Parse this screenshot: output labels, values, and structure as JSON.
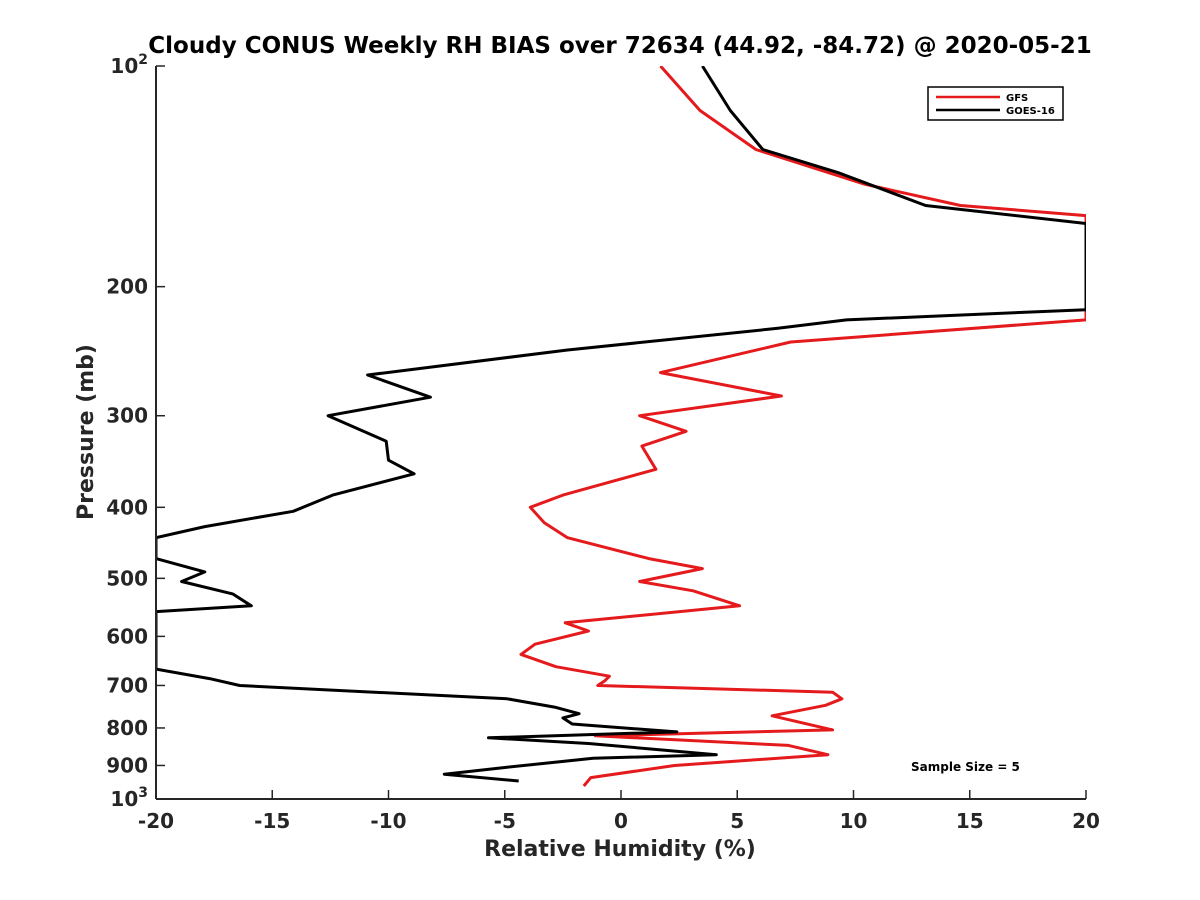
{
  "chart_data": {
    "type": "line",
    "title": "Cloudy CONUS Weekly RH BIAS over 72634 (44.92, -84.72) @ 2020-05-21",
    "xlabel": "Relative Humidity (%)",
    "ylabel": "Pressure (mb)",
    "xlim": [
      -20,
      20
    ],
    "ylim": [
      100,
      1000
    ],
    "yscale": "log",
    "y_reversed": true,
    "x_ticks": [
      "-20",
      "-15",
      "-10",
      "-5",
      "0",
      "5",
      "10",
      "15",
      "20"
    ],
    "y_ticks": [
      {
        "value": 100,
        "base": "10",
        "exp": "2"
      },
      {
        "value": 200,
        "label": "200"
      },
      {
        "value": 300,
        "label": "300"
      },
      {
        "value": 400,
        "label": "400"
      },
      {
        "value": 500,
        "label": "500"
      },
      {
        "value": 600,
        "label": "600"
      },
      {
        "value": 700,
        "label": "700"
      },
      {
        "value": 800,
        "label": "800"
      },
      {
        "value": 900,
        "label": "900"
      },
      {
        "value": 1000,
        "base": "10",
        "exp": "3"
      }
    ],
    "legend_position": "top-right",
    "grid": false,
    "annotation": "Sample Size = 5",
    "series": [
      {
        "name": "GFS",
        "color": "#e41a1c",
        "points": [
          [
            1.7,
            100
          ],
          [
            3.4,
            115
          ],
          [
            5.8,
            130
          ],
          [
            10.5,
            145
          ],
          [
            14.6,
            155
          ],
          [
            20.0,
            160
          ],
          [
            20.0,
            222
          ],
          [
            7.3,
            238
          ],
          [
            1.7,
            262
          ],
          [
            6.9,
            282
          ],
          [
            0.8,
            300
          ],
          [
            2.8,
            315
          ],
          [
            0.9,
            330
          ],
          [
            1.5,
            355
          ],
          [
            -2.5,
            385
          ],
          [
            -3.9,
            400
          ],
          [
            -3.3,
            420
          ],
          [
            -2.3,
            440
          ],
          [
            1.2,
            470
          ],
          [
            3.5,
            485
          ],
          [
            0.8,
            505
          ],
          [
            3.1,
            520
          ],
          [
            5.1,
            545
          ],
          [
            -2.4,
            575
          ],
          [
            -1.4,
            590
          ],
          [
            -3.7,
            615
          ],
          [
            -4.3,
            635
          ],
          [
            -2.8,
            660
          ],
          [
            -0.5,
            680
          ],
          [
            -0.7,
            690
          ],
          [
            -1.0,
            700
          ],
          [
            9.1,
            715
          ],
          [
            9.5,
            730
          ],
          [
            8.8,
            745
          ],
          [
            6.5,
            770
          ],
          [
            9.1,
            805
          ],
          [
            -1.1,
            820
          ],
          [
            7.2,
            845
          ],
          [
            8.9,
            870
          ],
          [
            2.3,
            900
          ],
          [
            -1.3,
            935
          ],
          [
            -1.6,
            960
          ]
        ]
      },
      {
        "name": "GOES-16",
        "color": "#000000",
        "points": [
          [
            3.5,
            100
          ],
          [
            4.7,
            115
          ],
          [
            6.1,
            130
          ],
          [
            9.4,
            140
          ],
          [
            13.1,
            155
          ],
          [
            20.0,
            164
          ],
          [
            20.0,
            215
          ],
          [
            9.7,
            222
          ],
          [
            6.7,
            228
          ],
          [
            -2.3,
            244
          ],
          [
            -10.9,
            264
          ],
          [
            -8.2,
            283
          ],
          [
            -12.6,
            300
          ],
          [
            -10.1,
            325
          ],
          [
            -10.0,
            345
          ],
          [
            -8.9,
            360
          ],
          [
            -12.4,
            385
          ],
          [
            -14.1,
            405
          ],
          [
            -17.9,
            425
          ],
          [
            -20.0,
            440
          ],
          [
            -20.0,
            470
          ],
          [
            -17.9,
            490
          ],
          [
            -18.9,
            505
          ],
          [
            -16.7,
            525
          ],
          [
            -15.9,
            545
          ],
          [
            -20.0,
            555
          ],
          [
            -20.0,
            665
          ],
          [
            -17.7,
            685
          ],
          [
            -16.4,
            700
          ],
          [
            -4.9,
            730
          ],
          [
            -2.8,
            750
          ],
          [
            -1.8,
            765
          ],
          [
            -2.5,
            775
          ],
          [
            -2.1,
            790
          ],
          [
            2.4,
            810
          ],
          [
            -5.7,
            825
          ],
          [
            -1.4,
            840
          ],
          [
            4.1,
            870
          ],
          [
            -1.2,
            880
          ],
          [
            -4.9,
            905
          ],
          [
            -7.6,
            925
          ],
          [
            -4.4,
            945
          ]
        ]
      }
    ]
  }
}
